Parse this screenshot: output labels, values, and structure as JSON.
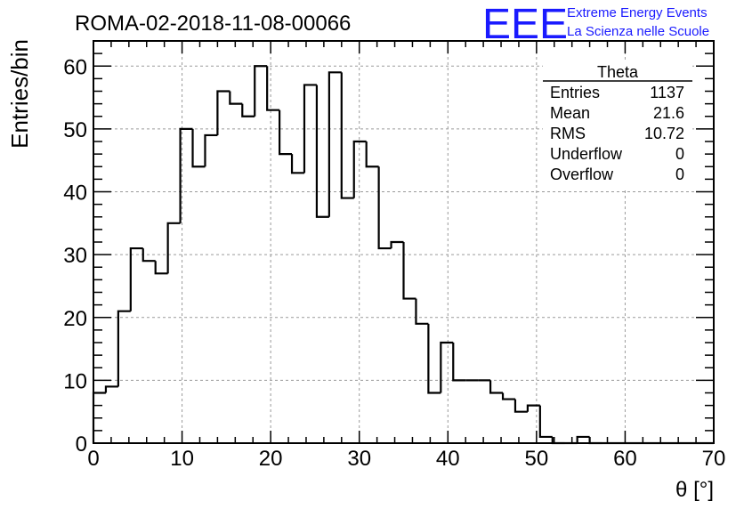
{
  "header": {
    "title": "ROMA-02-2018-11-08-00066",
    "logo_text": "EEE",
    "logo_line1": "Extreme Energy Events",
    "logo_line2": "La Scienza nelle Scuole",
    "logo_color": "#1a1aff"
  },
  "stats": {
    "name": "Theta",
    "rows": [
      {
        "label": "Entries",
        "value": "1137"
      },
      {
        "label": "Mean",
        "value": "21.6"
      },
      {
        "label": "RMS",
        "value": "10.72"
      },
      {
        "label": "Underflow",
        "value": "0"
      },
      {
        "label": "Overflow",
        "value": "0"
      }
    ]
  },
  "chart_data": {
    "type": "histogram",
    "xlabel": "θ [°]",
    "ylabel": "Entries/bin",
    "xlim": [
      0,
      70
    ],
    "ylim": [
      0,
      64
    ],
    "bin_width": 1.4,
    "x_ticks": [
      0,
      10,
      20,
      30,
      40,
      50,
      60,
      70
    ],
    "y_ticks": [
      0,
      10,
      20,
      30,
      40,
      50,
      60
    ],
    "grid": true,
    "counts": [
      8,
      9,
      21,
      31,
      29,
      27,
      35,
      50,
      44,
      49,
      56,
      54,
      52,
      60,
      53,
      46,
      43,
      57,
      36,
      59,
      39,
      48,
      44,
      31,
      32,
      23,
      19,
      8,
      16,
      10,
      10,
      10,
      8,
      7,
      5,
      6,
      1,
      0,
      0,
      1,
      0,
      0,
      0,
      0,
      0,
      0,
      0,
      0,
      0,
      0
    ]
  }
}
